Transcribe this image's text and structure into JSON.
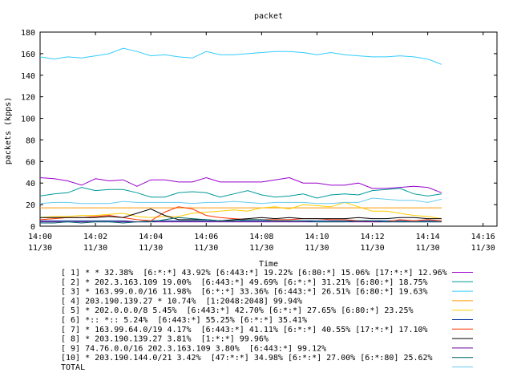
{
  "chart_data": {
    "type": "line",
    "title": "packet",
    "xlabel": "Time",
    "ylabel": "packets (kpps)",
    "xlim": [
      0,
      16.5
    ],
    "ylim": [
      0,
      180
    ],
    "yticks": [
      0,
      20,
      40,
      60,
      80,
      100,
      120,
      140,
      160,
      180
    ],
    "xticks": [
      {
        "v": 0,
        "t": "14:00",
        "d": "11/30"
      },
      {
        "v": 2,
        "t": "14:02",
        "d": "11/30"
      },
      {
        "v": 4,
        "t": "14:04",
        "d": "11/30"
      },
      {
        "v": 6,
        "t": "14:06",
        "d": "11/30"
      },
      {
        "v": 8,
        "t": "14:08",
        "d": "11/30"
      },
      {
        "v": 10,
        "t": "14:10",
        "d": "11/30"
      },
      {
        "v": 12,
        "t": "14:12",
        "d": "11/30"
      },
      {
        "v": 14,
        "t": "14:14",
        "d": "11/30"
      },
      {
        "v": 16,
        "t": "14:16",
        "d": "11/30"
      }
    ],
    "x": [
      0,
      0.5,
      1,
      1.5,
      2,
      2.5,
      3,
      3.5,
      4,
      4.5,
      5,
      5.5,
      6,
      6.5,
      7,
      7.5,
      8,
      8.5,
      9,
      9.5,
      10,
      10.5,
      11,
      11.5,
      12,
      12.5,
      13,
      13.5,
      14,
      14.5
    ],
    "series": [
      {
        "label": "[ 1] * * 32.38%  [6:*:*] 43.92% [6:443:*] 19.22% [6:80:*] 15.06% [17:*:*] 12.96%",
        "color": "#9900cc",
        "values": [
          45,
          44,
          42,
          38,
          44,
          42,
          43,
          37,
          43,
          43,
          41,
          41,
          45,
          41,
          41,
          41,
          41,
          43,
          45,
          40,
          40,
          38,
          38,
          40,
          35,
          35,
          36,
          37,
          36,
          31
        ]
      },
      {
        "label": "[ 2] * 202.3.163.109 19.00%  [6:443:*] 49.69% [6:*:*] 31.21% [6:80:*] 18.75%",
        "color": "#009999",
        "values": [
          28,
          30,
          31,
          36,
          33,
          34,
          34,
          31,
          27,
          27,
          31,
          32,
          31,
          27,
          30,
          33,
          29,
          27,
          28,
          30,
          26,
          29,
          30,
          29,
          33,
          34,
          35,
          30,
          28,
          30
        ]
      },
      {
        "label": "[ 3] * 163.99.0.0/16 11.98%  [6:*:*] 33.36% [6:443:*] 26.51% [6:80:*] 19.63%",
        "color": "#33ccff",
        "values": [
          157,
          155,
          157,
          156,
          158,
          160,
          165,
          162,
          158,
          159,
          157,
          156,
          162,
          159,
          159,
          160,
          161,
          162,
          162,
          161,
          159,
          161,
          159,
          158,
          157,
          157,
          158,
          157,
          155,
          150
        ]
      },
      {
        "label": "[ 4] 203.190.139.27 * 10.74%  [1:2048:2048] 99.94%",
        "color": "#ff9900",
        "values": [
          17,
          17,
          17,
          17,
          17,
          17,
          17,
          17,
          17,
          17,
          17,
          17,
          17,
          17,
          17,
          17,
          17,
          17,
          17,
          17,
          17,
          17,
          17,
          17,
          17,
          17,
          17,
          17,
          17,
          17
        ]
      },
      {
        "label": "[ 5] * 202.0.0.0/8 5.45%  [6:443:*] 42.70% [6:*:*] 27.65% [6:80:*] 23.25%",
        "color": "#ffcc00",
        "values": [
          8,
          9,
          9,
          10,
          10,
          11,
          12,
          9,
          8,
          9,
          9,
          12,
          13,
          14,
          15,
          14,
          17,
          18,
          16,
          20,
          19,
          18,
          22,
          18,
          14,
          14,
          12,
          10,
          9,
          7
        ]
      },
      {
        "label": "[ 6] *:: *:: 5.24%  [6:443:*] 55.25% [6:*:*] 35.41%",
        "color": "#003399",
        "values": [
          5,
          5,
          5,
          5,
          5,
          5,
          5,
          4,
          5,
          5,
          5,
          5,
          5,
          5,
          5,
          5,
          5,
          5,
          5,
          5,
          5,
          5,
          5,
          5,
          5,
          5,
          5,
          5,
          5,
          5
        ]
      },
      {
        "label": "[ 7] * 163.99.64.0/19 4.17%  [6:443:*] 41.11% [6:*:*] 40.55% [17:*:*] 17.10%",
        "color": "#ff3300",
        "values": [
          6,
          7,
          8,
          8,
          9,
          10,
          8,
          6,
          5,
          13,
          18,
          16,
          10,
          8,
          7,
          6,
          6,
          6,
          6,
          7,
          7,
          6,
          6,
          5,
          4,
          4,
          6,
          5,
          6,
          5
        ]
      },
      {
        "label": "[ 8] * 203.190.139.27 3.81%  [1:*:*] 99.96%",
        "color": "#000000",
        "values": [
          8,
          8,
          8,
          8,
          8,
          9,
          8,
          12,
          16,
          10,
          6,
          6,
          6,
          5,
          6,
          7,
          8,
          7,
          8,
          7,
          7,
          7,
          7,
          8,
          7,
          7,
          8,
          8,
          7,
          7
        ]
      },
      {
        "label": "[ 9] 74.76.0.0/16 202.3.163.109 3.80%  [6:443:*] 99.12%",
        "color": "#660099",
        "values": [
          4,
          4,
          4,
          4,
          4,
          4,
          4,
          4,
          4,
          4,
          4,
          4,
          4,
          4,
          4,
          4,
          4,
          4,
          4,
          4,
          4,
          4,
          4,
          4,
          4,
          4,
          4,
          4,
          4,
          4
        ]
      },
      {
        "label": "[10] * 203.190.144.0/21 3.42%  [47:*:*] 34.98% [6:*:*] 27.00% [6:*:80] 25.62%",
        "color": "#006666",
        "values": [
          3,
          3,
          4,
          3,
          4,
          4,
          3,
          4,
          4,
          6,
          8,
          7,
          6,
          5,
          5,
          6,
          6,
          5,
          5,
          5,
          4,
          4,
          4,
          5,
          5,
          4,
          4,
          4,
          4,
          4
        ]
      },
      {
        "label": "TOTAL",
        "color": "#66ccee",
        "values": [
          21,
          22,
          22,
          21,
          21,
          21,
          23,
          22,
          22,
          22,
          22,
          21,
          22,
          22,
          23,
          22,
          21,
          22,
          22,
          22,
          21,
          21,
          22,
          22,
          26,
          25,
          24,
          24,
          22,
          25
        ]
      }
    ]
  }
}
